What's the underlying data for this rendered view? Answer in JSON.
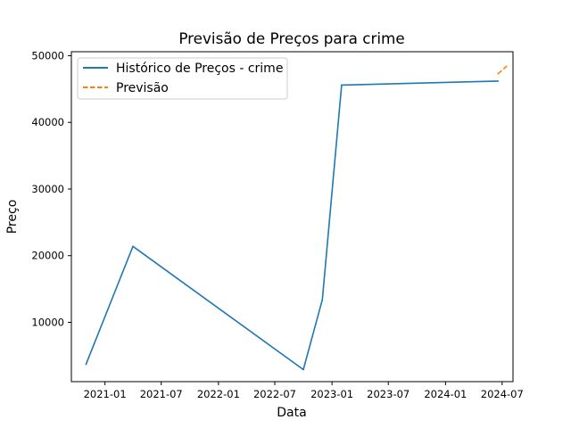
{
  "chart_data": {
    "type": "line",
    "title": "Previsão de Preços para crime",
    "xlabel": "Data",
    "ylabel": "Preço",
    "x_ticks": [
      "2021-01",
      "2021-07",
      "2022-01",
      "2022-07",
      "2023-01",
      "2023-07",
      "2024-01",
      "2024-07"
    ],
    "y_ticks": [
      10000,
      20000,
      30000,
      40000,
      50000
    ],
    "y_tick_labels": [
      "10000",
      "20000",
      "30000",
      "40000",
      "50000"
    ],
    "xlim": [
      "2020-09-15",
      "2024-08-05"
    ],
    "ylim": [
      1100,
      50600
    ],
    "grid": false,
    "legend_position": "top-left",
    "series": [
      {
        "name": "Histórico de Preços - crime",
        "color": "#1f77b4",
        "style": "solid",
        "x": [
          "2020-11-01",
          "2021-04-01",
          "2022-10-01",
          "2022-12-01",
          "2023-02-01",
          "2024-06-18"
        ],
        "y": [
          3700,
          21400,
          2900,
          13400,
          45600,
          46200
        ]
      },
      {
        "name": "Previsão",
        "color": "#ff7f0e",
        "style": "dashed",
        "x": [
          "2024-06-18",
          "2024-07-15"
        ],
        "y": [
          47300,
          48400
        ]
      }
    ]
  }
}
